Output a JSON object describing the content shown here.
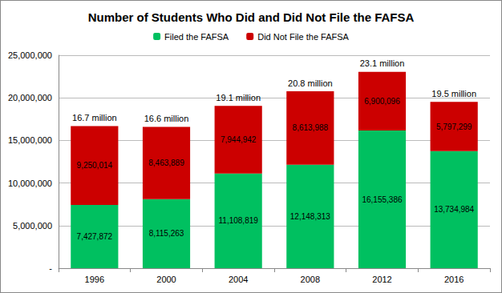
{
  "chart_data": {
    "type": "bar",
    "title": "Number of Students Who Did and Did Not File the FAFSA",
    "categories": [
      "1996",
      "2000",
      "2004",
      "2008",
      "2012",
      "2016"
    ],
    "stacked": true,
    "data_labels": true,
    "grid": true,
    "legend": "top",
    "series": [
      {
        "name": "Filed the FAFSA",
        "color": "#00C060",
        "values": [
          7427872,
          8115263,
          11108819,
          12148313,
          16155386,
          13734984
        ],
        "value_labels": [
          "7,427,872",
          "8,115,263",
          "11,108,819",
          "12,148,313",
          "16,155,386",
          "13,734,984"
        ]
      },
      {
        "name": "Did Not File the FAFSA",
        "color": "#CC0000",
        "values": [
          9250014,
          8463889,
          7944942,
          8613988,
          6900096,
          5797299
        ],
        "value_labels": [
          "9,250,014",
          "8,463,889",
          "7,944,942",
          "8,613,988",
          "6,900,096",
          "5,797,299"
        ]
      }
    ],
    "annotations": [
      {
        "category": "1996",
        "text": "16.7 million"
      },
      {
        "category": "2000",
        "text": "16.6 million"
      },
      {
        "category": "2004",
        "text": "19.1 million"
      },
      {
        "category": "2008",
        "text": "20.8 million"
      },
      {
        "category": "2012",
        "text": "23.1 million"
      },
      {
        "category": "2016",
        "text": "19.5 million"
      }
    ],
    "ylim": [
      0,
      25000000
    ],
    "yticks": [
      {
        "value": 0,
        "label": "-"
      },
      {
        "value": 5000000,
        "label": "5,000,000"
      },
      {
        "value": 10000000,
        "label": "10,000,000"
      },
      {
        "value": 15000000,
        "label": "15,000,000"
      },
      {
        "value": 20000000,
        "label": "20,000,000"
      },
      {
        "value": 25000000,
        "label": "25,000,000"
      }
    ]
  }
}
